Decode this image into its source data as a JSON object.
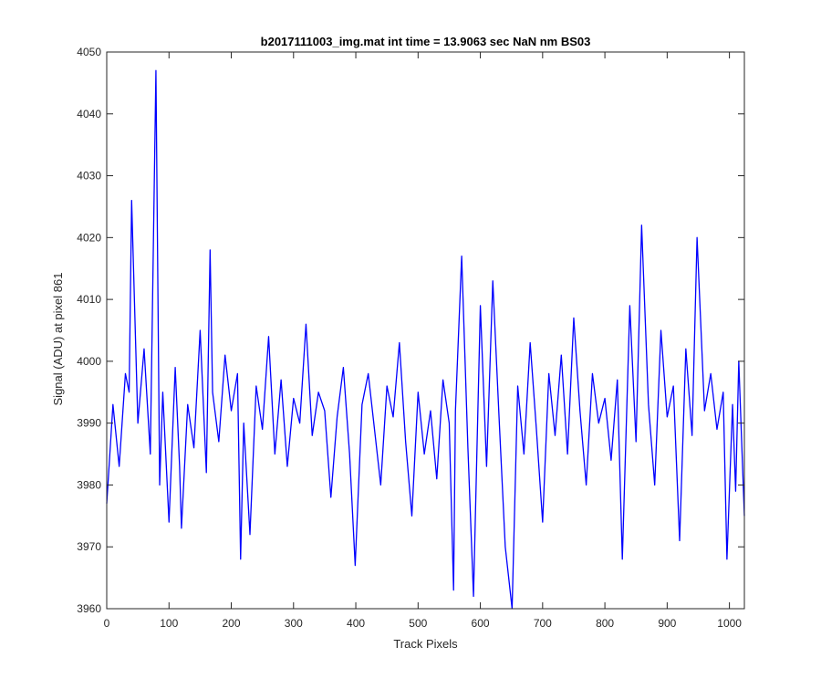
{
  "chart_data": {
    "type": "line",
    "title": "b2017111003_img.mat int time = 13.9063 sec  NaN nm BS03",
    "xlabel": "Track Pixels",
    "ylabel": "Signal (ADU) at pixel 861",
    "xlim": [
      0,
      1024
    ],
    "ylim": [
      3960,
      4050
    ],
    "xticks": [
      0,
      100,
      200,
      300,
      400,
      500,
      600,
      700,
      800,
      900,
      1000
    ],
    "yticks": [
      3960,
      3970,
      3980,
      3990,
      4000,
      4010,
      4020,
      4030,
      4040,
      4050
    ],
    "grid": false,
    "line_color": "#0000ff",
    "series": [
      {
        "x": [
          0,
          10,
          20,
          30,
          36,
          40,
          50,
          60,
          70,
          79,
          85,
          90,
          100,
          110,
          117,
          120,
          130,
          140,
          150,
          160,
          166,
          170,
          180,
          190,
          200,
          210,
          215,
          220,
          230,
          240,
          250,
          260,
          270,
          280,
          290,
          300,
          310,
          320,
          330,
          340,
          350,
          360,
          370,
          380,
          390,
          399,
          410,
          420,
          430,
          440,
          450,
          460,
          470,
          480,
          490,
          500,
          510,
          520,
          530,
          540,
          550,
          557,
          560,
          570,
          580,
          589,
          600,
          610,
          620,
          630,
          640,
          651,
          660,
          670,
          680,
          690,
          700,
          710,
          720,
          730,
          740,
          750,
          760,
          770,
          780,
          790,
          800,
          810,
          820,
          828,
          840,
          850,
          859,
          870,
          880,
          890,
          900,
          910,
          920,
          930,
          940,
          948,
          960,
          970,
          980,
          990,
          996,
          1005,
          1010,
          1015,
          1020,
          1024
        ],
        "y": [
          3977,
          3993,
          3983,
          3998,
          3995,
          4026,
          3990,
          4002,
          3985,
          4047,
          3980,
          3995,
          3974,
          3999,
          3983,
          3973,
          3993,
          3986,
          4005,
          3982,
          4018,
          3995,
          3987,
          4001,
          3992,
          3998,
          3968,
          3990,
          3972,
          3996,
          3989,
          4004,
          3985,
          3997,
          3983,
          3994,
          3990,
          4006,
          3988,
          3995,
          3992,
          3978,
          3991,
          3999,
          3985,
          3967,
          3993,
          3998,
          3989,
          3980,
          3996,
          3991,
          4003,
          3987,
          3975,
          3995,
          3985,
          3992,
          3981,
          3997,
          3990,
          3963,
          3992,
          4017,
          3986,
          3962,
          4009,
          3983,
          4013,
          3991,
          3970,
          3960,
          3996,
          3985,
          4003,
          3989,
          3974,
          3998,
          3988,
          4001,
          3985,
          4007,
          3992,
          3980,
          3998,
          3990,
          3994,
          3984,
          3997,
          3968,
          4009,
          3987,
          4022,
          3993,
          3980,
          4005,
          3991,
          3996,
          3971,
          4002,
          3988,
          4020,
          3992,
          3998,
          3989,
          3995,
          3968,
          3993,
          3979,
          4000,
          3986,
          3975
        ]
      }
    ]
  }
}
